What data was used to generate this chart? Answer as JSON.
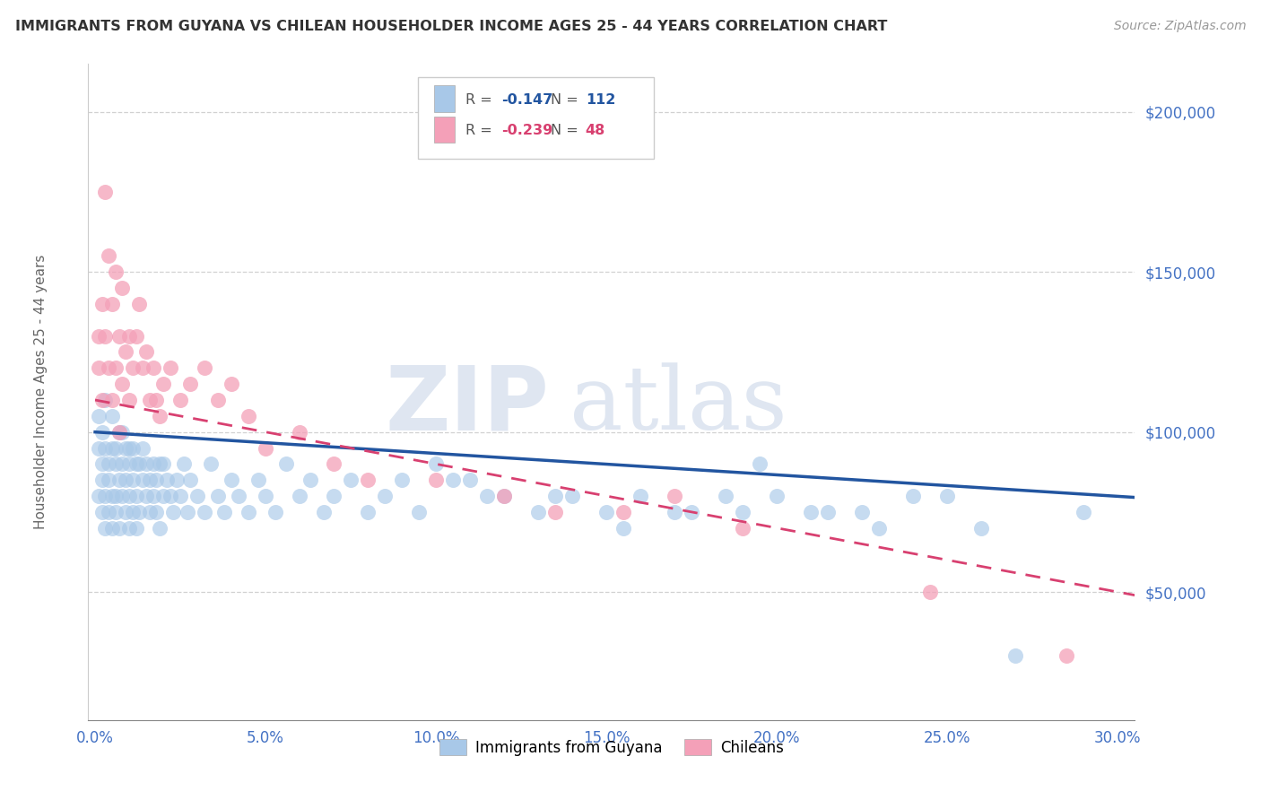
{
  "title": "IMMIGRANTS FROM GUYANA VS CHILEAN HOUSEHOLDER INCOME AGES 25 - 44 YEARS CORRELATION CHART",
  "source": "Source: ZipAtlas.com",
  "ylabel": "Householder Income Ages 25 - 44 years",
  "xlabel_ticks": [
    "0.0%",
    "5.0%",
    "10.0%",
    "15.0%",
    "20.0%",
    "25.0%",
    "30.0%"
  ],
  "xlabel_vals": [
    0.0,
    0.05,
    0.1,
    0.15,
    0.2,
    0.25,
    0.3
  ],
  "ytick_labels": [
    "$50,000",
    "$100,000",
    "$150,000",
    "$200,000"
  ],
  "ytick_vals": [
    50000,
    100000,
    150000,
    200000
  ],
  "xmin": -0.002,
  "xmax": 0.305,
  "ymin": 10000,
  "ymax": 215000,
  "guyana_R": -0.147,
  "guyana_N": 112,
  "chilean_R": -0.239,
  "chilean_N": 48,
  "guyana_color": "#a8c8e8",
  "chilean_color": "#f4a0b8",
  "guyana_line_color": "#2255a0",
  "chilean_line_color": "#d84070",
  "background_color": "#ffffff",
  "grid_color": "#cccccc",
  "watermark": "ZIPatlas",
  "watermark_color": "#dce4f0",
  "guyana_line_intercept": 100000,
  "guyana_line_slope": -67000,
  "chilean_line_intercept": 110000,
  "chilean_line_slope": -200000,
  "guyana_x": [
    0.001,
    0.001,
    0.001,
    0.002,
    0.002,
    0.002,
    0.002,
    0.003,
    0.003,
    0.003,
    0.003,
    0.004,
    0.004,
    0.004,
    0.005,
    0.005,
    0.005,
    0.005,
    0.006,
    0.006,
    0.006,
    0.006,
    0.007,
    0.007,
    0.007,
    0.008,
    0.008,
    0.008,
    0.009,
    0.009,
    0.009,
    0.01,
    0.01,
    0.01,
    0.01,
    0.011,
    0.011,
    0.011,
    0.012,
    0.012,
    0.012,
    0.013,
    0.013,
    0.014,
    0.014,
    0.015,
    0.015,
    0.016,
    0.016,
    0.017,
    0.017,
    0.018,
    0.018,
    0.019,
    0.019,
    0.02,
    0.02,
    0.021,
    0.022,
    0.023,
    0.024,
    0.025,
    0.026,
    0.027,
    0.028,
    0.03,
    0.032,
    0.034,
    0.036,
    0.038,
    0.04,
    0.042,
    0.045,
    0.048,
    0.05,
    0.053,
    0.056,
    0.06,
    0.063,
    0.067,
    0.07,
    0.075,
    0.08,
    0.085,
    0.09,
    0.095,
    0.1,
    0.11,
    0.12,
    0.13,
    0.14,
    0.15,
    0.16,
    0.17,
    0.185,
    0.19,
    0.2,
    0.21,
    0.225,
    0.24,
    0.195,
    0.29,
    0.215,
    0.23,
    0.26,
    0.25,
    0.175,
    0.135,
    0.155,
    0.27,
    0.105,
    0.115
  ],
  "guyana_y": [
    95000,
    105000,
    80000,
    90000,
    75000,
    100000,
    85000,
    95000,
    80000,
    110000,
    70000,
    90000,
    85000,
    75000,
    95000,
    80000,
    105000,
    70000,
    90000,
    80000,
    95000,
    75000,
    100000,
    85000,
    70000,
    90000,
    80000,
    100000,
    95000,
    75000,
    85000,
    95000,
    80000,
    90000,
    70000,
    85000,
    95000,
    75000,
    90000,
    80000,
    70000,
    90000,
    75000,
    85000,
    95000,
    80000,
    90000,
    85000,
    75000,
    90000,
    80000,
    75000,
    85000,
    90000,
    70000,
    80000,
    90000,
    85000,
    80000,
    75000,
    85000,
    80000,
    90000,
    75000,
    85000,
    80000,
    75000,
    90000,
    80000,
    75000,
    85000,
    80000,
    75000,
    85000,
    80000,
    75000,
    90000,
    80000,
    85000,
    75000,
    80000,
    85000,
    75000,
    80000,
    85000,
    75000,
    90000,
    85000,
    80000,
    75000,
    80000,
    75000,
    80000,
    75000,
    80000,
    75000,
    80000,
    75000,
    75000,
    80000,
    90000,
    75000,
    75000,
    70000,
    70000,
    80000,
    75000,
    80000,
    70000,
    30000,
    85000,
    80000
  ],
  "chilean_x": [
    0.001,
    0.001,
    0.002,
    0.002,
    0.003,
    0.003,
    0.004,
    0.004,
    0.005,
    0.005,
    0.006,
    0.006,
    0.007,
    0.007,
    0.008,
    0.008,
    0.009,
    0.01,
    0.01,
    0.011,
    0.012,
    0.013,
    0.014,
    0.015,
    0.016,
    0.017,
    0.018,
    0.019,
    0.02,
    0.022,
    0.025,
    0.028,
    0.032,
    0.036,
    0.04,
    0.045,
    0.05,
    0.06,
    0.07,
    0.08,
    0.1,
    0.12,
    0.135,
    0.155,
    0.17,
    0.19,
    0.245,
    0.285
  ],
  "chilean_y": [
    130000,
    120000,
    140000,
    110000,
    175000,
    130000,
    155000,
    120000,
    140000,
    110000,
    150000,
    120000,
    130000,
    100000,
    145000,
    115000,
    125000,
    130000,
    110000,
    120000,
    130000,
    140000,
    120000,
    125000,
    110000,
    120000,
    110000,
    105000,
    115000,
    120000,
    110000,
    115000,
    120000,
    110000,
    115000,
    105000,
    95000,
    100000,
    90000,
    85000,
    85000,
    80000,
    75000,
    75000,
    80000,
    70000,
    50000,
    30000
  ]
}
